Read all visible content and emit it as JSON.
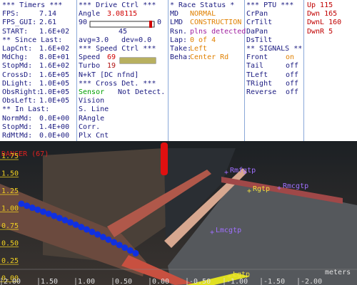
{
  "panels": [
    {
      "lines": [
        [
          "*** Timers ***"
        ],
        [
          "FPS:",
          "7.14"
        ],
        [
          "FPS_GUI:",
          "2.61"
        ],
        [
          "START:",
          "1.6E+02"
        ],
        [
          "** Since Last:"
        ],
        [
          "LapCnt:",
          "1.6E+02"
        ],
        [
          "MdChg:",
          "8.0E+01"
        ],
        [
          "StopMd:",
          "1.6E+02"
        ],
        [
          "CrossD:",
          "1.6E+05"
        ],
        [
          "DLight:",
          "1.0E+05"
        ],
        [
          "ObsRight:",
          "1.0E+05"
        ],
        [
          "ObsLeft:",
          "1.0E+05"
        ],
        [
          "** In Last:"
        ],
        [
          "NormMd:",
          "0.0E+00"
        ],
        [
          "StopMd:",
          "1.4E+00"
        ],
        [
          "RdMtMd:",
          "0.0E+00"
        ]
      ]
    },
    {
      "lines": [
        [
          "*** Drive Ctrl ***"
        ],
        [
          "Angle",
          "3.08115"
        ],
        [
          "90",
          "0"
        ],
        [
          "45"
        ],
        [
          "avg=3.0",
          "dev=0.0"
        ],
        [
          "*** Speed Ctrl ***"
        ],
        [
          "Speed",
          "69"
        ],
        [
          "Turbo",
          "19"
        ],
        [
          "N+kT [DC nfnd]"
        ],
        [
          "*** Cross Det. ***"
        ],
        [
          "Sensor",
          "Not Detect."
        ],
        [
          "Vision"
        ],
        [
          "S. Line"
        ],
        [
          "RAngle"
        ],
        [
          "Corr."
        ],
        [
          "Plx Cnt"
        ]
      ]
    },
    {
      "lines": [
        [
          "* Race Status *"
        ],
        [
          "MD",
          "NORMAL"
        ],
        [
          "LMD",
          "CONSTRUCTION"
        ],
        [
          "Rsn.",
          "plns detected"
        ],
        [
          "Lap:",
          "0 of 4"
        ],
        [
          "Take:",
          "Left"
        ],
        [
          "Beha:",
          "Center Rd"
        ]
      ]
    },
    {
      "lines": [
        [
          "*** PTU ***"
        ],
        [
          "CrPan"
        ],
        [
          "CrTilt"
        ],
        [
          "DaPan"
        ],
        [
          "DsTilt"
        ],
        [
          "** SIGNALS **"
        ],
        [
          "Front",
          "on"
        ],
        [
          "Tail",
          "off"
        ],
        [
          "TLeft",
          "off"
        ],
        [
          "TRight",
          "off"
        ],
        [
          "Reverse",
          "off"
        ]
      ]
    },
    {
      "lines": [
        [
          "Up 115"
        ],
        [
          "Dwn 165"
        ],
        [
          "DwnL 160"
        ],
        [
          "DwnR 5"
        ]
      ]
    }
  ],
  "camera": {
    "warning": "DANGER (67)",
    "y_labels": [
      "1.75",
      "1.50",
      "1.25",
      "1.00",
      "0.75",
      "0.50",
      "0.25",
      "0.00"
    ],
    "x_labels": [
      "2.00",
      "1.50",
      "1.00",
      "0.50",
      "0.00",
      "-0.50",
      "-1.00",
      "-1.50",
      "-2.00"
    ],
    "unit": "meters",
    "markers": [
      "Rmfgtp",
      "Rgtp",
      "Rmcgtp",
      "Lmcgtp",
      "Lgtp"
    ]
  }
}
